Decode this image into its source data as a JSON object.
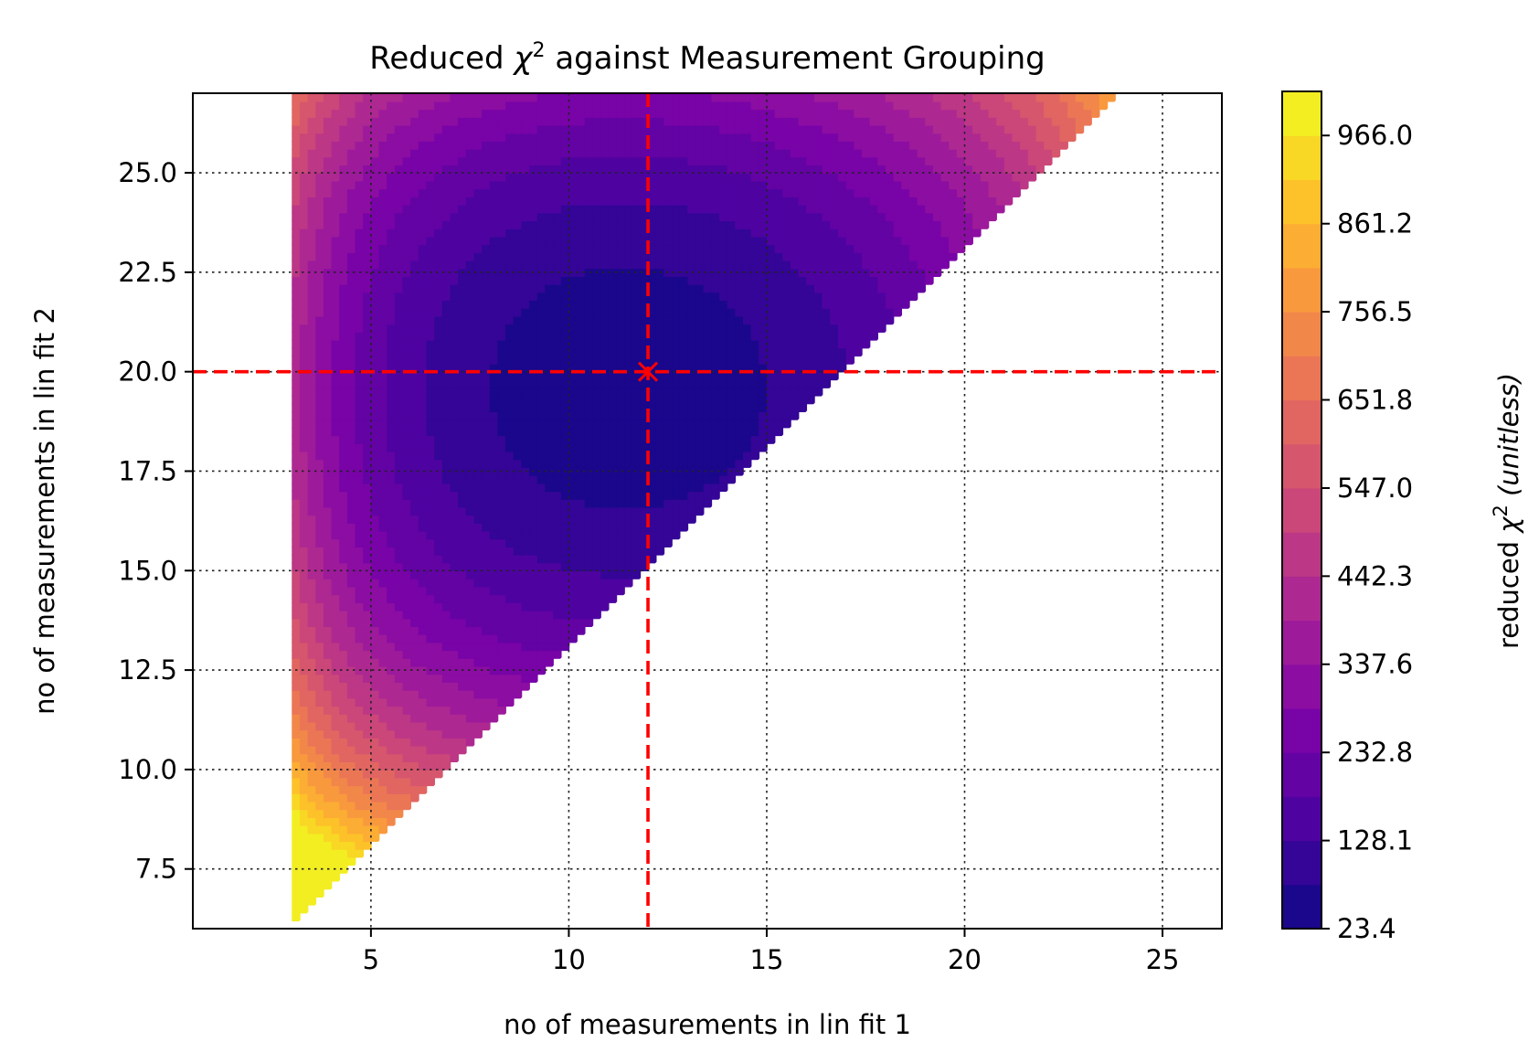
{
  "chart_data": {
    "type": "heatmap",
    "title_text": "Reduced ",
    "title_symbol": "χ",
    "title_sup": "2",
    "title_suffix": " against Measurement Grouping",
    "xlabel": "no of measurements in lin fit 1",
    "ylabel": "no of measurements in lin fit 2",
    "xlim": [
      0.5,
      26.5
    ],
    "ylim": [
      6,
      27
    ],
    "xticks": [
      5,
      10,
      15,
      20,
      25
    ],
    "xtick_labels": [
      "5",
      "10",
      "15",
      "20",
      "25"
    ],
    "yticks": [
      7.5,
      10.0,
      12.5,
      15.0,
      17.5,
      20.0,
      22.5,
      25.0
    ],
    "ytick_labels": [
      "7.5",
      "10.0",
      "12.5",
      "15.0",
      "17.5",
      "20.0",
      "22.5",
      "25.0"
    ],
    "grid": true,
    "x_range_of_data": [
      3,
      24
    ],
    "y_range_of_data": [
      6,
      27
    ],
    "valid_region": "y > x + 3",
    "minimum_marker": {
      "x": 12,
      "y": 20,
      "symbol": "x"
    },
    "reference_lines": {
      "vertical_x": 12,
      "horizontal_y": 20,
      "color": "#ff0000",
      "style": "dashed"
    },
    "colormap": "plasma",
    "colorbar": {
      "label_prefix": "reduced ",
      "label_symbol": "χ",
      "label_sup": "2",
      "label_units": " (unitless)",
      "range": [
        23.4,
        1018.4
      ],
      "tick_values": [
        23.4,
        128.1,
        232.8,
        337.6,
        442.3,
        547.0,
        651.8,
        756.5,
        861.2,
        966.0
      ],
      "tick_labels": [
        "23.4",
        "128.1",
        "232.8",
        "337.6",
        "442.3",
        "547.0",
        "651.8",
        "756.5",
        "861.2",
        "966.0"
      ],
      "levels": 19
    }
  }
}
